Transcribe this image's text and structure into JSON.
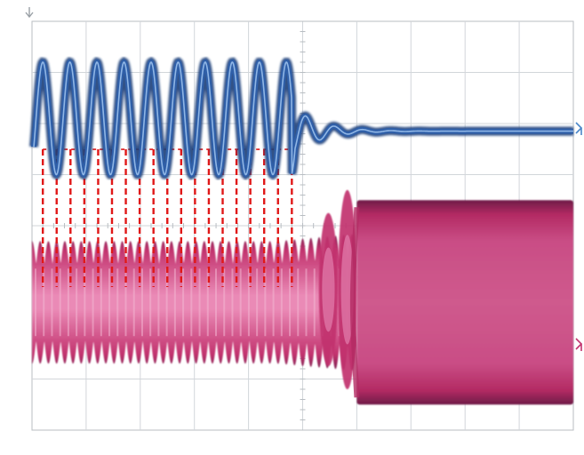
{
  "chart_data": {
    "type": "line",
    "title": "",
    "xlabel": "",
    "ylabel": "",
    "grid": true,
    "grid_divisions": {
      "x": 10,
      "y": 8
    },
    "x_range": [
      0,
      10
    ],
    "y_range": [
      -4,
      4
    ],
    "series": [
      {
        "kind": "channel-1-waveform",
        "color": "#2f5fa8",
        "description_values": {
          "sine_cycles_before_stop": 9.5,
          "cycles_per_division": 2,
          "amplitude_div": 1.1,
          "center_div": 2.1,
          "stop_at_div": 4.8,
          "settle_center_div": 1.85,
          "ring_down_cycles": 2
        }
      },
      {
        "kind": "channel-2-envelope",
        "color": "#c2336e",
        "description_values": {
          "modulated_center_div": -1.5,
          "modulated_half_height_div": 1.2,
          "ripple_cycles_per_division": 3.3,
          "burst_start_div": 6.0,
          "burst_top_div": 0.5,
          "burst_bottom_div": -3.5
        }
      }
    ],
    "markers": {
      "kind": "vertical-dashed-lines",
      "color": "#e01818",
      "count": 19,
      "from_div": 0.2,
      "to_div": 4.8
    },
    "indicators": {
      "trigger_color": "#9aa0a6",
      "ch1_color": "#4a86c8",
      "ch2_color": "#c2336e"
    }
  }
}
